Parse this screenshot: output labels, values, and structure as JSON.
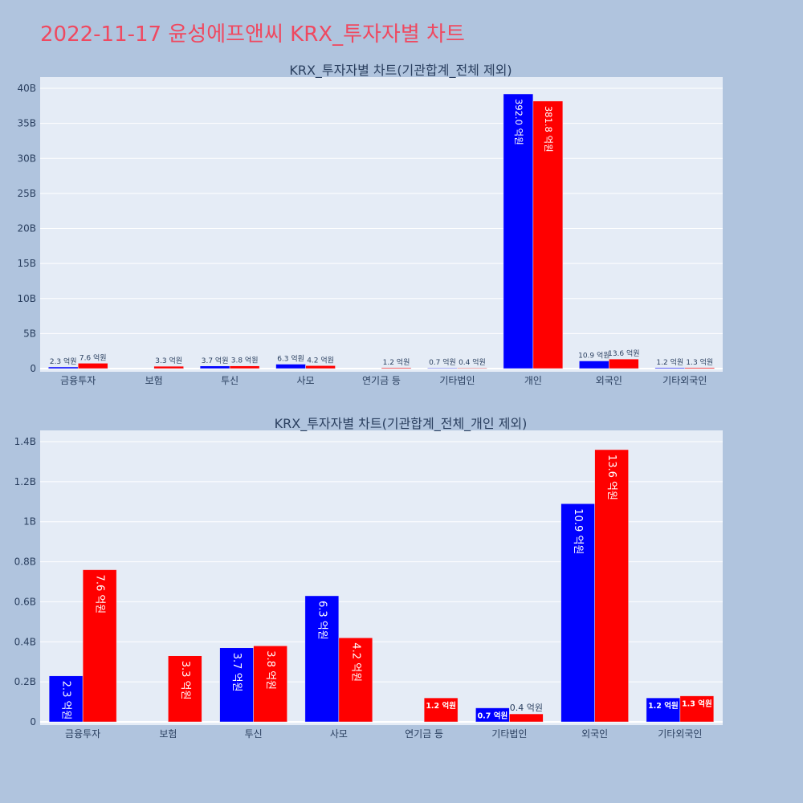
{
  "page": {
    "title": "2022-11-17 윤성에프앤씨 KRX_투자자별 차트"
  },
  "colors": {
    "background": "#b0c4de",
    "plot_background": "#e5ecf6",
    "series_a": "#0000ff",
    "series_b": "#ff0000",
    "title": "#ef4960"
  },
  "chart_data": [
    {
      "type": "bar",
      "title": "KRX_투자자별 차트(기관합계_전체 제외)",
      "categories": [
        "금융투자",
        "보험",
        "투신",
        "사모",
        "연기금 등",
        "기타법인",
        "개인",
        "외국인",
        "기타외국인"
      ],
      "ylim": [
        0,
        40000000000
      ],
      "yticks": [
        0,
        5000000000,
        10000000000,
        15000000000,
        20000000000,
        25000000000,
        30000000000,
        35000000000,
        40000000000
      ],
      "ytick_labels": [
        "0",
        "5B",
        "10B",
        "15B",
        "20B",
        "25B",
        "30B",
        "35B",
        "40B"
      ],
      "grid": true,
      "series": [
        {
          "color": "#0000ff",
          "values": [
            230000000,
            null,
            370000000,
            630000000,
            null,
            70000000,
            39200000000,
            1090000000,
            120000000
          ],
          "labels": [
            "2.3 억원",
            "",
            "3.7 억원",
            "6.3 억원",
            "",
            "0.7 억원",
            "392.0 억원",
            "10.9 억원",
            "1.2 억원"
          ]
        },
        {
          "color": "#ff0000",
          "values": [
            760000000,
            330000000,
            380000000,
            420000000,
            120000000,
            40000000,
            38180000000,
            1360000000,
            130000000
          ],
          "labels": [
            "7.6 억원",
            "3.3 억원",
            "3.8 억원",
            "4.2 억원",
            "1.2 억원",
            "0.4 억원",
            "381.8 억원",
            "13.6 억원",
            "1.3 억원"
          ]
        }
      ]
    },
    {
      "type": "bar",
      "title": "KRX_투자자별 차트(기관합계_전체_개인 제외)",
      "categories": [
        "금융투자",
        "보험",
        "투신",
        "사모",
        "연기금 등",
        "기타법인",
        "외국인",
        "기타외국인"
      ],
      "ylim": [
        0,
        1400000000
      ],
      "yticks": [
        0,
        200000000,
        400000000,
        600000000,
        800000000,
        1000000000,
        1200000000,
        1400000000
      ],
      "ytick_labels": [
        "0",
        "0.2B",
        "0.4B",
        "0.6B",
        "0.8B",
        "1B",
        "1.2B",
        "1.4B"
      ],
      "grid": true,
      "series": [
        {
          "color": "#0000ff",
          "values": [
            230000000,
            null,
            370000000,
            630000000,
            null,
            70000000,
            1090000000,
            120000000
          ],
          "labels": [
            "2.3 억원",
            "",
            "3.7 억원",
            "6.3 억원",
            "",
            "0.7 억원",
            "10.9 억원",
            "1.2 억원"
          ]
        },
        {
          "color": "#ff0000",
          "values": [
            760000000,
            330000000,
            380000000,
            420000000,
            120000000,
            40000000,
            1360000000,
            130000000
          ],
          "labels": [
            "7.6 억원",
            "3.3 억원",
            "3.8 억원",
            "4.2 억원",
            "1.2 억원",
            "0.4 억원",
            "13.6 억원",
            "1.3 억원"
          ]
        }
      ]
    }
  ]
}
